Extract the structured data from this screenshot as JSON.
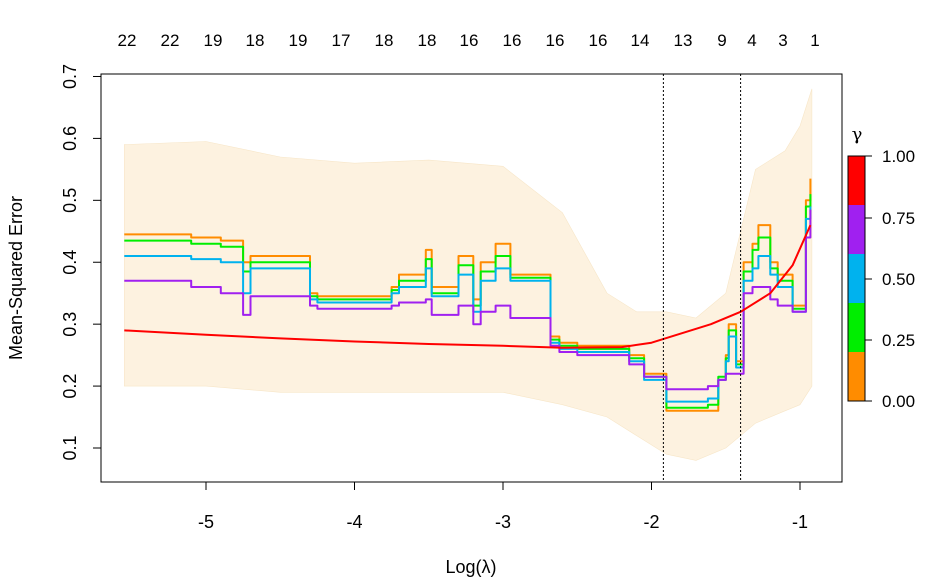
{
  "chart_data": {
    "type": "line",
    "xlabel": "Log(λ)",
    "ylabel": "Mean-Squared Error",
    "xlim": [
      -5.55,
      -0.9
    ],
    "ylim": [
      0.06,
      0.68
    ],
    "x_ticks": [
      -5,
      -4,
      -3,
      -2,
      -1
    ],
    "x_tick_labels": [
      "-5",
      "-4",
      "-3",
      "-2",
      "-1"
    ],
    "y_ticks": [
      0.1,
      0.2,
      0.3,
      0.4,
      0.5,
      0.6,
      0.7
    ],
    "y_tick_labels": [
      "0.1",
      "0.2",
      "0.3",
      "0.4",
      "0.5",
      "0.6",
      "0.7"
    ],
    "top_axis": {
      "x": [
        -5.55,
        -5.25,
        -4.95,
        -4.65,
        -4.35,
        -4.05,
        -3.75,
        -3.45,
        -3.15,
        -2.85,
        -2.55,
        -2.25,
        -1.95,
        -1.65,
        -1.35,
        -1.18,
        -1.05,
        -0.92
      ],
      "labels": [
        "22",
        "22",
        "19",
        "18",
        "19",
        "17",
        "18",
        "18",
        "16",
        "16",
        "16",
        "16",
        "14",
        "13",
        "9",
        "4",
        "3",
        "1"
      ]
    },
    "vlines": [
      -1.92,
      -1.4
    ],
    "legend": {
      "title": "γ",
      "position": "right",
      "labels": [
        "1.00",
        "0.75",
        "0.50",
        "0.25",
        "0.00"
      ],
      "colors": [
        "#ff0000",
        "#a020f0",
        "#00b2ee",
        "#00ee00",
        "#ff8c00"
      ]
    },
    "band": {
      "color": "#fdf2e0",
      "x": [
        -5.55,
        -5.0,
        -4.5,
        -4.0,
        -3.5,
        -3.0,
        -2.6,
        -2.3,
        -2.1,
        -1.9,
        -1.7,
        -1.5,
        -1.3,
        -1.1,
        -1.0,
        -0.92
      ],
      "upper": [
        0.59,
        0.595,
        0.57,
        0.56,
        0.565,
        0.555,
        0.48,
        0.35,
        0.32,
        0.32,
        0.31,
        0.35,
        0.55,
        0.58,
        0.62,
        0.68
      ],
      "lower": [
        0.2,
        0.2,
        0.19,
        0.19,
        0.19,
        0.19,
        0.17,
        0.15,
        0.12,
        0.09,
        0.08,
        0.1,
        0.14,
        0.16,
        0.17,
        0.2
      ]
    },
    "series": [
      {
        "name": "0.00",
        "color": "#ff8c00",
        "x": [
          -5.55,
          -5.1,
          -4.9,
          -4.75,
          -4.7,
          -4.3,
          -4.25,
          -3.95,
          -3.75,
          -3.7,
          -3.52,
          -3.48,
          -3.3,
          -3.2,
          -3.15,
          -3.05,
          -2.95,
          -2.75,
          -2.68,
          -2.62,
          -2.5,
          -2.15,
          -2.05,
          -1.9,
          -1.62,
          -1.55,
          -1.5,
          -1.48,
          -1.43,
          -1.38,
          -1.32,
          -1.28,
          -1.2,
          -1.15,
          -1.05,
          -0.98,
          -0.96,
          -0.93
        ],
        "y": [
          0.445,
          0.44,
          0.435,
          0.4,
          0.41,
          0.35,
          0.345,
          0.345,
          0.36,
          0.38,
          0.42,
          0.36,
          0.41,
          0.34,
          0.4,
          0.43,
          0.38,
          0.38,
          0.28,
          0.27,
          0.265,
          0.25,
          0.22,
          0.16,
          0.16,
          0.21,
          0.25,
          0.3,
          0.24,
          0.4,
          0.43,
          0.46,
          0.4,
          0.38,
          0.33,
          0.33,
          0.5,
          0.535
        ]
      },
      {
        "name": "0.25",
        "color": "#00ee00",
        "x": [
          -5.55,
          -5.1,
          -4.9,
          -4.75,
          -4.7,
          -4.3,
          -4.25,
          -3.95,
          -3.75,
          -3.7,
          -3.52,
          -3.48,
          -3.3,
          -3.2,
          -3.15,
          -3.05,
          -2.95,
          -2.75,
          -2.68,
          -2.62,
          -2.5,
          -2.15,
          -2.05,
          -1.9,
          -1.62,
          -1.55,
          -1.5,
          -1.48,
          -1.43,
          -1.38,
          -1.32,
          -1.28,
          -1.2,
          -1.15,
          -1.05,
          -0.98,
          -0.96,
          -0.93
        ],
        "y": [
          0.435,
          0.43,
          0.425,
          0.385,
          0.4,
          0.345,
          0.34,
          0.34,
          0.355,
          0.37,
          0.405,
          0.35,
          0.395,
          0.33,
          0.385,
          0.41,
          0.375,
          0.375,
          0.275,
          0.265,
          0.26,
          0.245,
          0.215,
          0.165,
          0.17,
          0.215,
          0.245,
          0.29,
          0.235,
          0.385,
          0.42,
          0.44,
          0.39,
          0.37,
          0.325,
          0.325,
          0.49,
          0.51
        ]
      },
      {
        "name": "0.50",
        "color": "#00b2ee",
        "x": [
          -5.55,
          -5.1,
          -4.9,
          -4.75,
          -4.7,
          -4.3,
          -4.25,
          -3.95,
          -3.75,
          -3.7,
          -3.52,
          -3.48,
          -3.3,
          -3.2,
          -3.15,
          -3.05,
          -2.95,
          -2.75,
          -2.68,
          -2.62,
          -2.5,
          -2.15,
          -2.05,
          -1.9,
          -1.62,
          -1.55,
          -1.5,
          -1.48,
          -1.43,
          -1.38,
          -1.32,
          -1.28,
          -1.2,
          -1.15,
          -1.05,
          -0.98,
          -0.96,
          -0.93
        ],
        "y": [
          0.41,
          0.405,
          0.4,
          0.35,
          0.39,
          0.34,
          0.335,
          0.335,
          0.35,
          0.36,
          0.39,
          0.345,
          0.38,
          0.32,
          0.37,
          0.39,
          0.37,
          0.37,
          0.27,
          0.26,
          0.255,
          0.24,
          0.21,
          0.175,
          0.18,
          0.21,
          0.24,
          0.28,
          0.23,
          0.37,
          0.39,
          0.41,
          0.38,
          0.36,
          0.32,
          0.32,
          0.47,
          0.49
        ]
      },
      {
        "name": "0.75",
        "color": "#a020f0",
        "x": [
          -5.55,
          -5.1,
          -4.9,
          -4.75,
          -4.7,
          -4.3,
          -4.25,
          -3.95,
          -3.75,
          -3.7,
          -3.52,
          -3.48,
          -3.3,
          -3.2,
          -3.15,
          -3.05,
          -2.95,
          -2.75,
          -2.68,
          -2.62,
          -2.5,
          -2.15,
          -2.05,
          -1.9,
          -1.62,
          -1.55,
          -1.5,
          -1.48,
          -1.43,
          -1.38,
          -1.32,
          -1.28,
          -1.2,
          -1.15,
          -1.05,
          -0.98,
          -0.96,
          -0.93
        ],
        "y": [
          0.37,
          0.36,
          0.35,
          0.315,
          0.345,
          0.33,
          0.325,
          0.325,
          0.33,
          0.335,
          0.34,
          0.315,
          0.33,
          0.3,
          0.32,
          0.33,
          0.31,
          0.31,
          0.265,
          0.255,
          0.25,
          0.235,
          0.215,
          0.195,
          0.2,
          0.21,
          0.22,
          0.22,
          0.22,
          0.35,
          0.36,
          0.36,
          0.34,
          0.33,
          0.32,
          0.32,
          0.44,
          0.485
        ]
      },
      {
        "name": "1.00",
        "color": "#ff0000",
        "x": [
          -5.55,
          -5.0,
          -4.5,
          -4.0,
          -3.5,
          -3.0,
          -2.6,
          -2.2,
          -2.0,
          -1.8,
          -1.6,
          -1.4,
          -1.2,
          -1.05,
          -0.93
        ],
        "y": [
          0.29,
          0.283,
          0.277,
          0.272,
          0.268,
          0.265,
          0.262,
          0.263,
          0.27,
          0.285,
          0.3,
          0.32,
          0.35,
          0.395,
          0.46
        ]
      }
    ]
  }
}
